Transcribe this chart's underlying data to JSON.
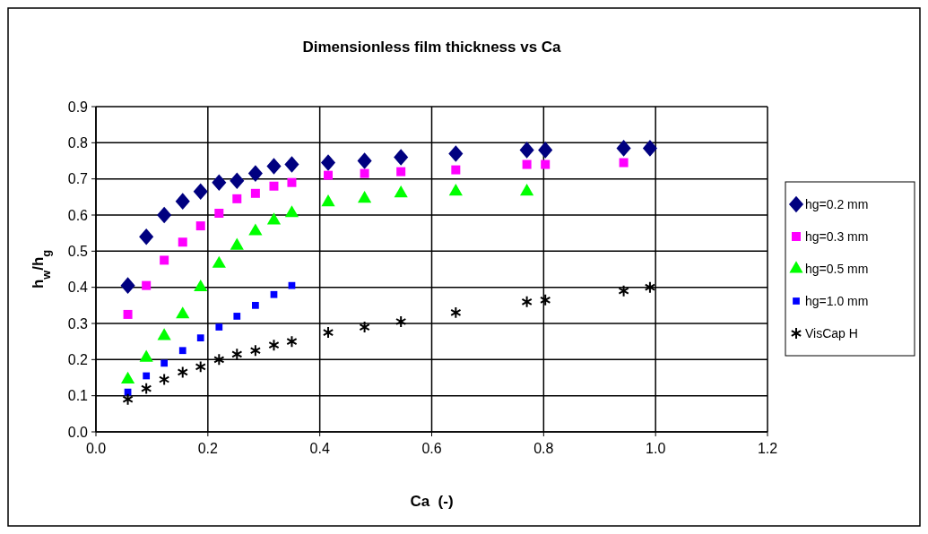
{
  "chart_data": {
    "type": "scatter",
    "title": "Dimensionless film thickness vs Ca",
    "xlabel": "Ca  (-)",
    "ylabel": "h$_{w}$/h$_{g}$",
    "xlim": [
      0,
      1.2
    ],
    "xticks": [
      {
        "value": 0,
        "label": "0.0"
      },
      {
        "value": 0.2,
        "label": "0.2"
      },
      {
        "value": 0.4,
        "label": "0.4"
      },
      {
        "value": 0.6,
        "label": "0.6"
      },
      {
        "value": 0.8,
        "label": "0.8"
      },
      {
        "value": 1,
        "label": "1.0"
      },
      {
        "value": 1.2,
        "label": "1.2"
      }
    ],
    "ylim": [
      0,
      0.9
    ],
    "yticks": [
      {
        "value": 0,
        "label": "0.0"
      },
      0.1,
      0.2,
      0.3,
      0.4,
      0.5,
      0.6,
      0.7,
      0.8,
      0.9
    ],
    "grid": true,
    "legend": "right",
    "series": [
      {
        "name": "hg=0.2 mm",
        "color": "#000080",
        "marker": "diamond",
        "x": [
          0.057,
          0.09,
          0.122,
          0.155,
          0.187,
          0.22,
          0.252,
          0.285,
          0.318,
          0.35,
          0.415,
          0.48,
          0.545,
          0.643,
          0.77,
          0.803,
          0.943,
          0.99
        ],
        "values": [
          0.405,
          0.54,
          0.6,
          0.638,
          0.665,
          0.69,
          0.695,
          0.715,
          0.735,
          0.74,
          0.745,
          0.75,
          0.76,
          0.77,
          0.78,
          0.78,
          0.785,
          0.785
        ]
      },
      {
        "name": "hg=0.3 mm",
        "color": "#ff00ff",
        "marker": "square",
        "x": [
          0.057,
          0.09,
          0.122,
          0.155,
          0.187,
          0.22,
          0.252,
          0.285,
          0.318,
          0.35,
          0.415,
          0.48,
          0.545,
          0.643,
          0.77,
          0.803,
          0.943
        ],
        "values": [
          0.325,
          0.405,
          0.475,
          0.525,
          0.57,
          0.605,
          0.645,
          0.66,
          0.68,
          0.69,
          0.71,
          0.715,
          0.72,
          0.725,
          0.74,
          0.74,
          0.745
        ]
      },
      {
        "name": "hg=0.5 mm",
        "color": "#00ff00",
        "marker": "triangle",
        "x": [
          0.057,
          0.09,
          0.122,
          0.155,
          0.187,
          0.22,
          0.252,
          0.285,
          0.318,
          0.35,
          0.415,
          0.48,
          0.545,
          0.643,
          0.77
        ],
        "values": [
          0.145,
          0.205,
          0.265,
          0.325,
          0.4,
          0.465,
          0.515,
          0.555,
          0.585,
          0.605,
          0.635,
          0.645,
          0.66,
          0.665,
          0.665
        ]
      },
      {
        "name": "hg=1.0 mm",
        "color": "#0000ff",
        "marker": "square",
        "x": [
          0.057,
          0.09,
          0.122,
          0.155,
          0.187,
          0.22,
          0.252,
          0.285,
          0.318,
          0.35
        ],
        "values": [
          0.11,
          0.155,
          0.19,
          0.225,
          0.26,
          0.29,
          0.32,
          0.35,
          0.38,
          0.405
        ]
      },
      {
        "name": "VisCap H",
        "color": "#000000",
        "marker": "cross",
        "x": [
          0.057,
          0.09,
          0.122,
          0.155,
          0.187,
          0.22,
          0.252,
          0.285,
          0.318,
          0.35,
          0.415,
          0.48,
          0.545,
          0.643,
          0.77,
          0.803,
          0.943,
          0.99
        ],
        "values": [
          0.09,
          0.12,
          0.145,
          0.165,
          0.18,
          0.2,
          0.215,
          0.225,
          0.24,
          0.25,
          0.275,
          0.29,
          0.305,
          0.33,
          0.36,
          0.365,
          0.39,
          0.4
        ]
      }
    ]
  }
}
